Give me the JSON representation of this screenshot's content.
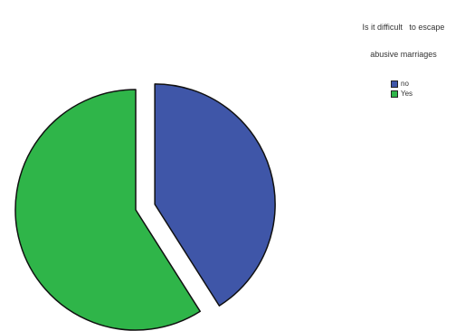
{
  "chart_data": {
    "type": "pie",
    "title": "",
    "legend": {
      "title_lines": [
        "Is it difficult   to escape",
        "abusive marriages"
      ],
      "placement": "top-right"
    },
    "slices": [
      {
        "label": "no",
        "value": 41,
        "color": "#3f56a8",
        "exploded": true
      },
      {
        "label": "Yes",
        "value": 59,
        "color": "#2fb549",
        "exploded": false
      }
    ]
  }
}
